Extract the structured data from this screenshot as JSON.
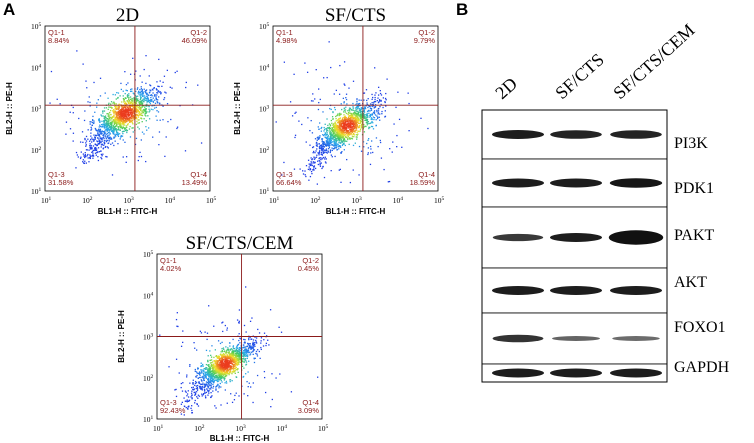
{
  "panel_a_label": "A",
  "panel_b_label": "B",
  "tick_base": "10",
  "flow_plots": [
    {
      "id": "2d",
      "title": "2D",
      "x_axis_label": "BL1-H :: FITC-H",
      "y_axis_label": "BL2-H :: PE-H",
      "x_tick_exponents": [
        "1",
        "2",
        "3",
        "4",
        "5"
      ],
      "y_tick_exponents": [
        "1",
        "2",
        "3",
        "4",
        "5"
      ],
      "gate": {
        "x_log": 3.18,
        "y_log": 3.08
      },
      "population": {
        "cx_log": 2.95,
        "cy_log": 2.9,
        "spread_x": 0.38,
        "spread_y": 0.3,
        "tail_strength": 0.55
      },
      "quadrants": [
        {
          "name": "Q1-1",
          "percent": "8.84%"
        },
        {
          "name": "Q1-2",
          "percent": "46.09%"
        },
        {
          "name": "Q1-3",
          "percent": "31.58%"
        },
        {
          "name": "Q1-4",
          "percent": "13.49%"
        }
      ]
    },
    {
      "id": "sf-cts",
      "title": "SF/CTS",
      "x_axis_label": "BL1-H :: FITC-H",
      "y_axis_label": "BL2-H :: PE-H",
      "x_tick_exponents": [
        "1",
        "2",
        "3",
        "4",
        "5"
      ],
      "y_tick_exponents": [
        "1",
        "2",
        "3",
        "4",
        "5"
      ],
      "gate": {
        "x_log": 3.18,
        "y_log": 3.08
      },
      "population": {
        "cx_log": 2.8,
        "cy_log": 2.6,
        "spread_x": 0.35,
        "spread_y": 0.28,
        "tail_strength": 0.45
      },
      "quadrants": [
        {
          "name": "Q1-1",
          "percent": "4.98%"
        },
        {
          "name": "Q1-2",
          "percent": "9.79%"
        },
        {
          "name": "Q1-3",
          "percent": "66.64%"
        },
        {
          "name": "Q1-4",
          "percent": "18.59%"
        }
      ]
    },
    {
      "id": "sf-cts-cem",
      "title": "SF/CTS/CEM",
      "x_axis_label": "BL1-H :: FITC-H",
      "y_axis_label": "BL2-H :: PE-H",
      "x_tick_exponents": [
        "1",
        "2",
        "3",
        "4",
        "5"
      ],
      "y_tick_exponents": [
        "1",
        "2",
        "3",
        "4",
        "5"
      ],
      "gate": {
        "x_log": 3.05,
        "y_log": 3.0
      },
      "population": {
        "cx_log": 2.65,
        "cy_log": 2.35,
        "spread_x": 0.33,
        "spread_y": 0.26,
        "tail_strength": 0.35
      },
      "quadrants": [
        {
          "name": "Q1-1",
          "percent": "4.02%"
        },
        {
          "name": "Q1-2",
          "percent": "0.45%"
        },
        {
          "name": "Q1-3",
          "percent": "92.43%"
        },
        {
          "name": "Q1-4",
          "percent": "3.09%"
        }
      ]
    }
  ],
  "western_blot": {
    "lanes": [
      "2D",
      "SF/CTS",
      "SF/CTS/CEM"
    ],
    "proteins": [
      {
        "name": "PI3K",
        "intensity": [
          1.0,
          0.95,
          0.95
        ]
      },
      {
        "name": "PDK1",
        "intensity": [
          1.0,
          1.0,
          1.05
        ]
      },
      {
        "name": "PAKT",
        "intensity": [
          0.8,
          1.0,
          1.6
        ]
      },
      {
        "name": "AKT",
        "intensity": [
          1.0,
          1.0,
          1.0
        ]
      },
      {
        "name": "FOXO1",
        "intensity": [
          0.85,
          0.5,
          0.45
        ]
      },
      {
        "name": "GAPDH",
        "intensity": [
          1.0,
          1.0,
          1.0
        ]
      }
    ]
  },
  "colors": {
    "gate_line": "#8b1a1a",
    "quadrant_text": "#8b1a1a",
    "band": "#111111",
    "blot_background": "#ffffff"
  }
}
